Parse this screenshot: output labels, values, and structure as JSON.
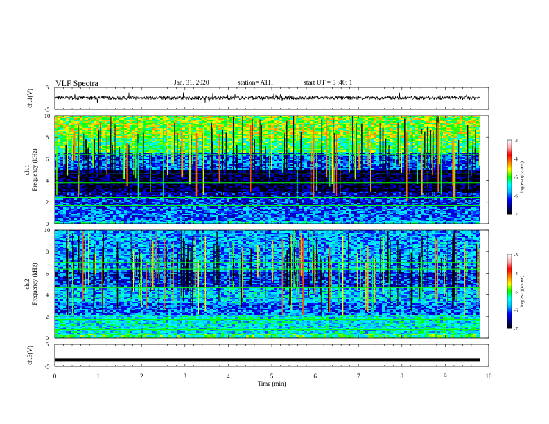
{
  "header": {
    "title": "VLF Spectra",
    "date": "Jan. 31, 2020",
    "station": "station= ATH",
    "start_ut": "start UT =  5 :40: 1"
  },
  "chart_data": [
    {
      "type": "line",
      "panel": "ch1-waveform",
      "ylabel": "ch.1(V)",
      "ylim": [
        -5,
        5
      ],
      "yticks": [
        "5",
        "-5"
      ],
      "x_range_min": [
        0,
        9.8
      ],
      "series": [
        {
          "values_description_free": true,
          "baseline_v": 0.2,
          "typical_spread_v": 1.0
        }
      ]
    },
    {
      "type": "heatmap",
      "panel": "ch1-spectrogram",
      "ylabel": "ch.1\nFrequency (kHz)",
      "ylabel_lines": [
        "ch.1",
        "Frequency (kHz)"
      ],
      "ylim": [
        0,
        10
      ],
      "yticks": [
        "0",
        "2",
        "4",
        "6",
        "8",
        "10"
      ],
      "x_range_min": [
        0,
        9.8
      ],
      "frequency_profile_log_psd": [
        {
          "f_khz": [
            0.0,
            0.3
          ],
          "level": -5.6
        },
        {
          "f_khz": [
            0.3,
            1.6
          ],
          "level": -6.0
        },
        {
          "f_khz": [
            1.6,
            2.4
          ],
          "level": -6.2
        },
        {
          "f_khz": [
            2.4,
            3.0
          ],
          "level": -6.4
        },
        {
          "f_khz": [
            3.0,
            5.0
          ],
          "level": -6.8
        },
        {
          "f_khz": [
            5.0,
            6.6
          ],
          "level": -6.0
        },
        {
          "f_khz": [
            6.6,
            8.0
          ],
          "level": -5.1
        },
        {
          "f_khz": [
            8.0,
            10.0
          ],
          "level": -4.8
        }
      ],
      "colorbar": {
        "label": "log(PSD)(V²/Hz)",
        "ticks": [
          "-3",
          "-4",
          "-5",
          "-6",
          "-7"
        ],
        "range": [
          -7,
          -3
        ]
      }
    },
    {
      "type": "heatmap",
      "panel": "ch2-spectrogram",
      "ylabel": "ch.2\nFrequency (kHz)",
      "ylabel_lines": [
        "ch.2",
        "Frequency (kHz)"
      ],
      "ylim": [
        0,
        10
      ],
      "yticks": [
        "0",
        "2",
        "4",
        "6",
        "8",
        "10"
      ],
      "x_range_min": [
        0,
        9.8
      ],
      "frequency_profile_log_psd": [
        {
          "f_khz": [
            0.0,
            0.4
          ],
          "level": -5.2
        },
        {
          "f_khz": [
            0.4,
            2.2
          ],
          "level": -5.5
        },
        {
          "f_khz": [
            2.2,
            3.2
          ],
          "level": -6.0
        },
        {
          "f_khz": [
            3.2,
            4.6
          ],
          "level": -5.7
        },
        {
          "f_khz": [
            4.6,
            6.2
          ],
          "level": -6.2
        },
        {
          "f_khz": [
            6.2,
            10.0
          ],
          "level": -5.8
        }
      ],
      "colorbar": {
        "label": "log(PSD)(V²/Hz)",
        "ticks": [
          "-3",
          "-4",
          "-5",
          "-6",
          "-7"
        ],
        "range": [
          -7,
          -3
        ]
      }
    },
    {
      "type": "line",
      "panel": "ch3-waveform",
      "ylabel": "ch.3(V)",
      "ylim": [
        -5,
        5
      ],
      "yticks": [
        "5",
        "-5"
      ],
      "x_range_min": [
        0,
        9.8
      ],
      "series": [
        {
          "constant_v": -2.0
        }
      ]
    }
  ],
  "xaxis": {
    "label": "Time (min)",
    "ticks": [
      "0",
      "1",
      "2",
      "3",
      "4",
      "5",
      "6",
      "7",
      "8",
      "9",
      "10"
    ],
    "xlim": [
      0,
      10
    ]
  },
  "colors": {
    "colormap": [
      "#000000",
      "#00008b",
      "#0000ff",
      "#00bfff",
      "#00ffff",
      "#00ff00",
      "#ffff00",
      "#ff7f00",
      "#ff0000",
      "#ffb0b0",
      "#ffffff"
    ]
  }
}
